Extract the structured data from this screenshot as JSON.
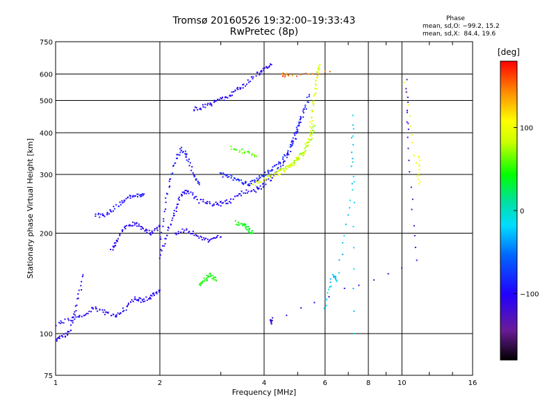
{
  "header": {
    "title_line1": "Tromsø 20160526 19:32:00–19:33:43",
    "title_line2": "RwPretec (8p)"
  },
  "phase_box": {
    "title": "Phase",
    "line_o": "mean, sd,O: −99.2, 15.2",
    "line_x": "mean, sd,X:  84.4, 19.6"
  },
  "colorbar": {
    "label": "[deg]",
    "ticks": [
      "100",
      "0",
      "−100"
    ],
    "tick_values": [
      100,
      0,
      -100
    ],
    "range": [
      -180,
      180
    ]
  },
  "chart_data": {
    "type": "scatter",
    "title": "Tromsø 20160526 19:32:00–19:33:43",
    "subtitle": "RwPretec (8p)",
    "xlabel": "Frequency [MHz]",
    "ylabel": "Stationary phase Virtual Height [km]",
    "x_scale": "log",
    "y_scale": "log",
    "xlim": [
      1,
      16
    ],
    "ylim": [
      75,
      750
    ],
    "x_ticks": [
      1,
      2,
      4,
      6,
      8,
      10,
      16
    ],
    "x_tick_labels": [
      "1",
      "2",
      "4",
      "6",
      "8",
      "10",
      "16"
    ],
    "y_ticks": [
      75,
      100,
      200,
      300,
      400,
      500,
      600,
      750
    ],
    "y_tick_labels": [
      "75",
      "100",
      "200",
      "300",
      "400",
      "500",
      "600",
      "750"
    ],
    "grid": true,
    "color_variable": "Phase [deg]",
    "traces": [
      {
        "phase": -100,
        "points": [
          [
            1.0,
            107
          ],
          [
            1.1,
            110
          ],
          [
            1.2,
            114
          ],
          [
            1.3,
            120
          ],
          [
            1.4,
            115
          ],
          [
            1.5,
            113
          ],
          [
            1.6,
            120
          ],
          [
            1.7,
            128
          ],
          [
            1.8,
            125
          ],
          [
            1.9,
            130
          ],
          [
            2.0,
            135
          ]
        ]
      },
      {
        "phase": -110,
        "points": [
          [
            1.0,
            95
          ],
          [
            1.05,
            98
          ],
          [
            1.1,
            102
          ],
          [
            1.15,
            120
          ],
          [
            1.2,
            150
          ]
        ]
      },
      {
        "phase": -95,
        "points": [
          [
            1.3,
            225
          ],
          [
            1.4,
            228
          ],
          [
            1.5,
            240
          ],
          [
            1.6,
            255
          ],
          [
            1.7,
            258
          ],
          [
            1.8,
            262
          ]
        ]
      },
      {
        "phase": -105,
        "points": [
          [
            1.45,
            180
          ],
          [
            1.5,
            190
          ],
          [
            1.6,
            210
          ],
          [
            1.7,
            215
          ],
          [
            1.8,
            205
          ],
          [
            1.9,
            200
          ],
          [
            2.0,
            210
          ]
        ]
      },
      {
        "phase": -100,
        "points": [
          [
            2.0,
            170
          ],
          [
            2.1,
            200
          ],
          [
            2.2,
            230
          ],
          [
            2.3,
            260
          ],
          [
            2.4,
            270
          ],
          [
            2.6,
            250
          ],
          [
            2.8,
            245
          ],
          [
            3.0,
            245
          ],
          [
            3.2,
            250
          ],
          [
            3.5,
            265
          ],
          [
            3.8,
            270
          ],
          [
            4.0,
            280
          ],
          [
            4.3,
            300
          ],
          [
            4.6,
            330
          ],
          [
            4.9,
            380
          ],
          [
            5.1,
            430
          ]
        ]
      },
      {
        "phase": -90,
        "points": [
          [
            2.0,
            190
          ],
          [
            2.1,
            260
          ],
          [
            2.2,
            320
          ],
          [
            2.3,
            360
          ],
          [
            2.4,
            340
          ],
          [
            2.5,
            300
          ],
          [
            2.6,
            280
          ]
        ]
      },
      {
        "phase": -100,
        "points": [
          [
            2.5,
            470
          ],
          [
            2.7,
            480
          ],
          [
            2.9,
            495
          ],
          [
            3.1,
            510
          ],
          [
            3.3,
            530
          ],
          [
            3.5,
            555
          ],
          [
            3.8,
            600
          ],
          [
            4.0,
            620
          ],
          [
            4.2,
            640
          ]
        ]
      },
      {
        "phase": -105,
        "points": [
          [
            2.2,
            200
          ],
          [
            2.4,
            205
          ],
          [
            2.6,
            195
          ],
          [
            2.8,
            190
          ],
          [
            3.0,
            195
          ]
        ]
      },
      {
        "phase": -85,
        "points": [
          [
            3.0,
            300
          ],
          [
            3.2,
            295
          ],
          [
            3.4,
            285
          ],
          [
            3.6,
            280
          ],
          [
            3.8,
            290
          ],
          [
            4.0,
            300
          ],
          [
            4.2,
            310
          ],
          [
            4.5,
            330
          ],
          [
            4.8,
            370
          ],
          [
            5.0,
            420
          ],
          [
            5.2,
            460
          ],
          [
            5.4,
            520
          ]
        ]
      },
      {
        "phase": 45,
        "points": [
          [
            2.6,
            140
          ],
          [
            2.7,
            145
          ],
          [
            2.8,
            150
          ],
          [
            2.9,
            145
          ]
        ]
      },
      {
        "phase": 40,
        "points": [
          [
            3.3,
            215
          ],
          [
            3.5,
            212
          ],
          [
            3.6,
            206
          ],
          [
            3.7,
            200
          ]
        ]
      },
      {
        "phase": 90,
        "points": [
          [
            3.7,
            280
          ],
          [
            4.0,
            290
          ],
          [
            4.3,
            300
          ],
          [
            4.6,
            310
          ],
          [
            4.9,
            330
          ],
          [
            5.2,
            350
          ],
          [
            5.4,
            390
          ],
          [
            5.5,
            450
          ],
          [
            5.6,
            520
          ],
          [
            5.7,
            600
          ],
          [
            5.8,
            640
          ]
        ]
      },
      {
        "phase": 75,
        "points": [
          [
            4.4,
            310
          ],
          [
            4.8,
            320
          ],
          [
            5.1,
            340
          ],
          [
            5.4,
            370
          ],
          [
            5.6,
            420
          ]
        ]
      },
      {
        "phase": 60,
        "points": [
          [
            3.2,
            360
          ],
          [
            3.5,
            350
          ],
          [
            3.8,
            340
          ]
        ]
      },
      {
        "phase": 150,
        "points": [
          [
            4.5,
            600
          ],
          [
            4.7,
            590
          ],
          [
            6.2,
            610
          ]
        ]
      },
      {
        "phase": 100,
        "points": [
          [
            10.2,
            560
          ],
          [
            11.2,
            280
          ],
          [
            11.2,
            340
          ]
        ]
      },
      {
        "phase": -20,
        "points": [
          [
            6.0,
            120
          ],
          [
            6.3,
            150
          ],
          [
            6.5,
            145
          ],
          [
            7.2,
            270
          ],
          [
            7.2,
            450
          ],
          [
            7.3,
            100
          ]
        ]
      },
      {
        "phase": -120,
        "points": [
          [
            10.3,
            570
          ],
          [
            10.4,
            390
          ],
          [
            11.0,
            165
          ],
          [
            4.2,
            110
          ],
          [
            4.2,
            107
          ]
        ]
      }
    ]
  }
}
